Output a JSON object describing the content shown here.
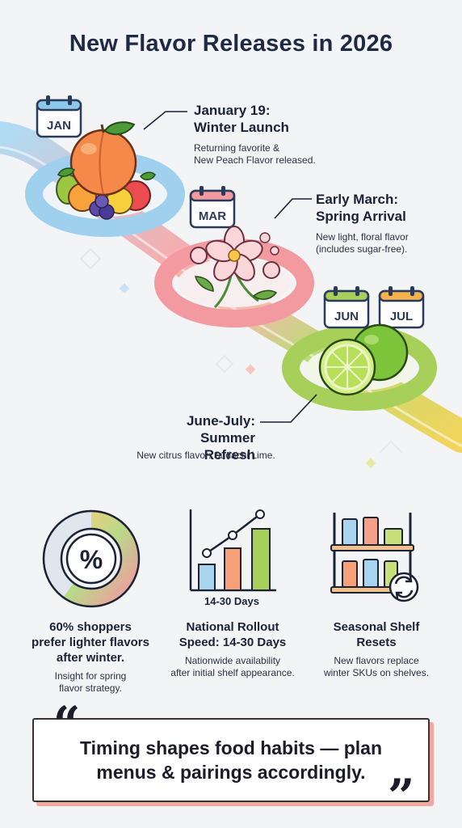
{
  "title": "New Flavor Releases in 2026",
  "events": [
    {
      "calendar": "JAN",
      "title_line1": "January 19:",
      "title_line2": "Winter Launch",
      "desc_line1": "Returning favorite &",
      "desc_line2": "New Peach Flavor released."
    },
    {
      "calendar": "MAR",
      "title_line1": "Early March:",
      "title_line2": "Spring Arrival",
      "desc_line1": "New light, floral flavor",
      "desc_line2": "(includes sugar-free)."
    },
    {
      "calendar1": "JUN",
      "calendar2": "JUL",
      "title_line1": "June-July:",
      "title_line2": "Summer Refresh",
      "desc_line1": "New citrus flavor: Sudachi Lime."
    }
  ],
  "stats": [
    {
      "icon": "percent-donut-icon",
      "value": 60,
      "donut_symbol": "%",
      "title_line1": "60% shoppers",
      "title_line2": "prefer lighter flavors",
      "title_line3": "after winter.",
      "desc_line1": "Insight for spring",
      "desc_line2": "flavor strategy."
    },
    {
      "icon": "bar-chart-icon",
      "chart_caption": "14-30 Days",
      "title_line1": "National Rollout",
      "title_line2": "Speed: 14-30 Days",
      "desc_line1": "Nationwide availability",
      "desc_line2": "after initial shelf appearance."
    },
    {
      "icon": "shelf-icon",
      "title_line1": "Seasonal Shelf",
      "title_line2": "Resets",
      "desc_line1": "New flavors replace",
      "desc_line2": "winter SKUs on shelves."
    }
  ],
  "quote": {
    "line1": "Timing shapes food habits — plan",
    "line2": "menus & pairings accordingly.",
    "open_mark": "“",
    "close_mark": "”"
  },
  "colors": {
    "accent_blue": "#8cc8ea",
    "accent_pink": "#f29aa0",
    "accent_green": "#a6d05a",
    "accent_yellow": "#f5d54a",
    "text_dark": "#1e2a44"
  }
}
